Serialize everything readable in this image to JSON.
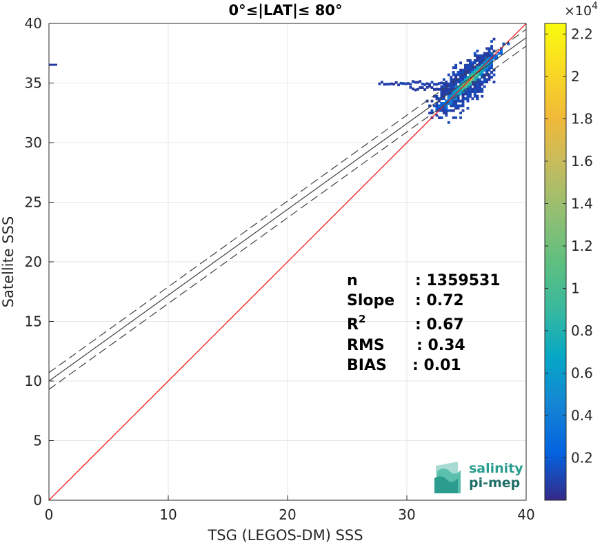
{
  "chart_data": {
    "type": "heatmap",
    "title": "0°≤|LAT|≤ 80°",
    "xlabel": "TSG (LEGOS-DM) SSS",
    "ylabel": "Satellite SSS",
    "xlim": [
      0,
      40
    ],
    "ylim": [
      0,
      40
    ],
    "xticks": [
      "0",
      "10",
      "20",
      "30",
      "40"
    ],
    "yticks": [
      "0",
      "5",
      "10",
      "15",
      "20",
      "25",
      "30",
      "35",
      "40"
    ],
    "grid": true,
    "colorbar": {
      "colormap": "parula",
      "range": [
        0,
        22500
      ],
      "exponent_label": "×10",
      "exponent": "4",
      "ticks": [
        "0.2",
        "0.4",
        "0.6",
        "0.8",
        "1",
        "1.2",
        "1.4",
        "1.6",
        "1.8",
        "2",
        "2.2"
      ],
      "tick_values": [
        0.2,
        0.4,
        0.6,
        0.8,
        1.0,
        1.2,
        1.4,
        1.6,
        1.8,
        2.0,
        2.2
      ]
    },
    "lines": [
      {
        "name": "1:1 line",
        "slope": 1.0,
        "intercept": 0.0,
        "color": "#ff0000",
        "style": "solid"
      },
      {
        "name": "regression",
        "slope": 0.72,
        "intercept": 10.0,
        "color": "#404040",
        "style": "solid"
      },
      {
        "name": "regression-upper",
        "slope": 0.72,
        "intercept": 10.7,
        "color": "#404040",
        "style": "dashed"
      },
      {
        "name": "regression-lower",
        "slope": 0.72,
        "intercept": 9.3,
        "color": "#404040",
        "style": "dashed"
      }
    ],
    "density_core": {
      "x": 35.2,
      "y": 35.2,
      "peak_count": 22000
    },
    "stats": [
      {
        "label": "n",
        "value": ": 1359531"
      },
      {
        "label": "Slope",
        "value": ": 0.72"
      },
      {
        "label": "R",
        "sup": "2",
        "value": ": 0.67"
      },
      {
        "label": "RMS",
        "value": ": 0.34"
      },
      {
        "label": "BIAS",
        "value": ": 0.01"
      }
    ]
  },
  "logo": {
    "line1": "salinity",
    "line2": "pi-mep"
  }
}
